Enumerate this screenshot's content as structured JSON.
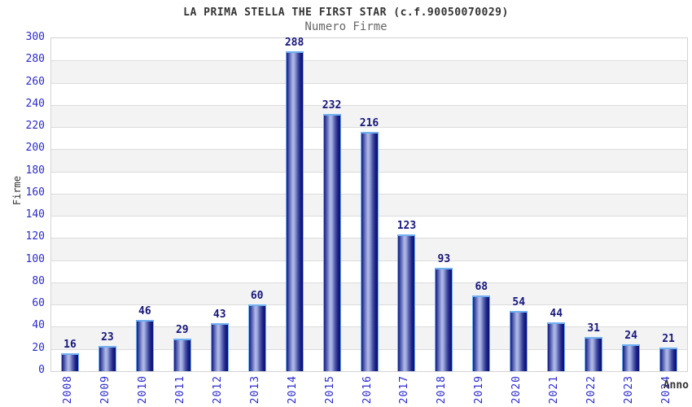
{
  "chart_data": {
    "type": "bar",
    "title": "LA PRIMA STELLA THE FIRST STAR (c.f.90050070029)",
    "subtitle": "Numero Firme",
    "xlabel": "Anno",
    "ylabel": "Firme",
    "categories": [
      "2008",
      "2009",
      "2010",
      "2011",
      "2012",
      "2013",
      "2014",
      "2015",
      "2016",
      "2017",
      "2018",
      "2019",
      "2020",
      "2021",
      "2022",
      "2023",
      "2024"
    ],
    "values": [
      16,
      23,
      46,
      29,
      43,
      60,
      288,
      232,
      216,
      123,
      93,
      68,
      54,
      44,
      31,
      24,
      21
    ],
    "ylim": [
      0,
      300
    ],
    "yticks": [
      0,
      20,
      40,
      60,
      80,
      100,
      120,
      140,
      160,
      180,
      200,
      220,
      240,
      260,
      280,
      300
    ],
    "grid": "horizontal",
    "legend": "none",
    "colors": {
      "bar_edge_dark": "#0c1170",
      "bar_highlight": "#b3bce9",
      "bar_border": "#6fb0f2",
      "tick_label": "#2a2ad0",
      "value_label": "#16167d",
      "band_alt": "#f3f3f3",
      "gridline": "#dcdcdc",
      "title": "#333333",
      "subtitle": "#666666"
    }
  }
}
